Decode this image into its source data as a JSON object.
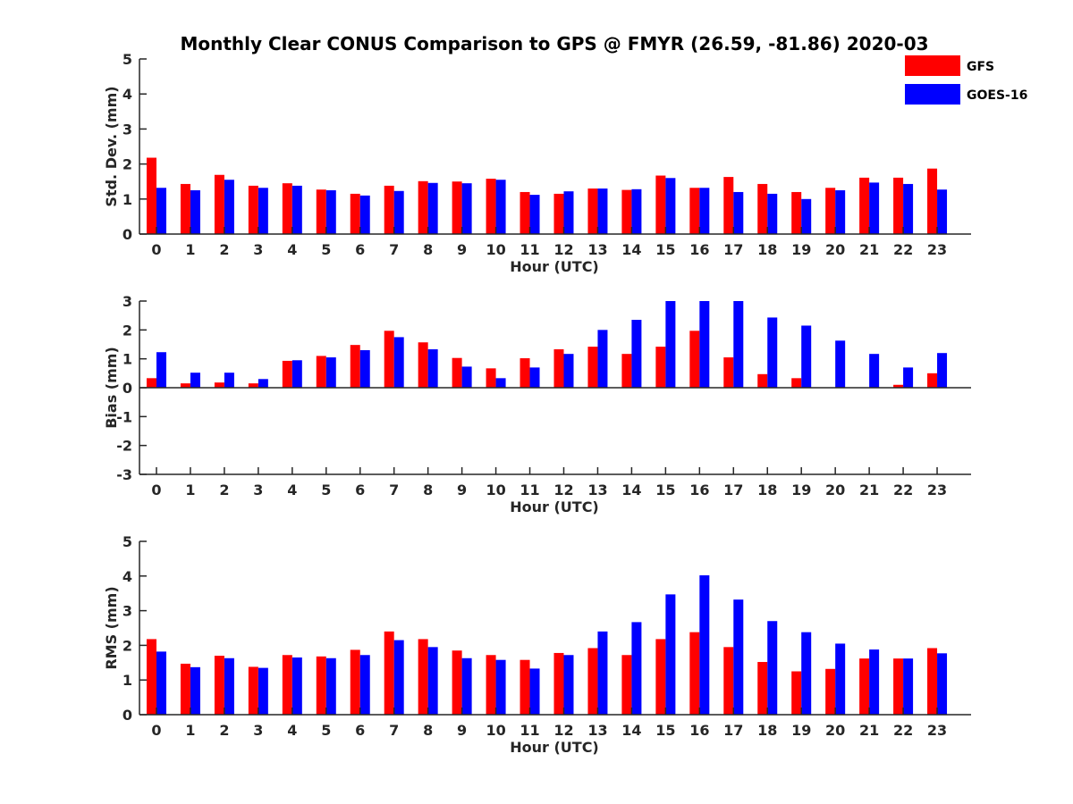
{
  "title": "Monthly Clear CONUS Comparison to GPS @ FMYR (26.59, -81.86) 2020-03",
  "legend": [
    {
      "name": "GFS",
      "color": "#ff0000"
    },
    {
      "name": "GOES-16",
      "color": "#0000ff"
    }
  ],
  "chart_data": [
    {
      "type": "bar",
      "xlabel": "Hour (UTC)",
      "ylabel": "Std. Dev. (mm)",
      "ylim": [
        0,
        5
      ],
      "yticks": [
        0,
        1,
        2,
        3,
        4,
        5
      ],
      "categories": [
        "0",
        "1",
        "2",
        "3",
        "4",
        "5",
        "6",
        "7",
        "8",
        "9",
        "10",
        "11",
        "12",
        "13",
        "14",
        "15",
        "16",
        "17",
        "18",
        "19",
        "20",
        "21",
        "22",
        "23"
      ],
      "series": [
        {
          "name": "GFS",
          "values": [
            2.18,
            1.43,
            1.69,
            1.38,
            1.45,
            1.27,
            1.15,
            1.38,
            1.51,
            1.5,
            1.58,
            1.2,
            1.15,
            1.3,
            1.26,
            1.67,
            1.32,
            1.63,
            1.43,
            1.2,
            1.32,
            1.61,
            1.61,
            1.87
          ]
        },
        {
          "name": "GOES-16",
          "values": [
            1.32,
            1.25,
            1.55,
            1.32,
            1.38,
            1.25,
            1.1,
            1.23,
            1.46,
            1.45,
            1.55,
            1.12,
            1.22,
            1.3,
            1.28,
            1.6,
            1.32,
            1.2,
            1.15,
            1.0,
            1.25,
            1.47,
            1.43,
            1.27
          ]
        }
      ]
    },
    {
      "type": "bar",
      "xlabel": "Hour (UTC)",
      "ylabel": "Bias (mm)",
      "ylim": [
        -3,
        3
      ],
      "yticks": [
        -3,
        -2,
        -1,
        0,
        1,
        2,
        3
      ],
      "categories": [
        "0",
        "1",
        "2",
        "3",
        "4",
        "5",
        "6",
        "7",
        "8",
        "9",
        "10",
        "11",
        "12",
        "13",
        "14",
        "15",
        "16",
        "17",
        "18",
        "19",
        "20",
        "21",
        "22",
        "23"
      ],
      "series": [
        {
          "name": "GFS",
          "values": [
            0.33,
            0.15,
            0.18,
            0.15,
            0.93,
            1.1,
            1.48,
            1.97,
            1.57,
            1.03,
            0.67,
            1.02,
            1.33,
            1.42,
            1.17,
            1.42,
            1.97,
            1.05,
            0.47,
            0.33,
            0.0,
            0.0,
            0.1,
            0.5
          ]
        },
        {
          "name": "GOES-16",
          "values": [
            1.23,
            0.52,
            0.52,
            0.3,
            0.95,
            1.05,
            1.3,
            1.75,
            1.33,
            0.73,
            0.33,
            0.7,
            1.17,
            2.0,
            2.35,
            3.0,
            3.0,
            3.0,
            2.43,
            2.15,
            1.63,
            1.17,
            0.7,
            1.2
          ]
        }
      ]
    },
    {
      "type": "bar",
      "xlabel": "Hour (UTC)",
      "ylabel": "RMS (mm)",
      "ylim": [
        0,
        5
      ],
      "yticks": [
        0,
        1,
        2,
        3,
        4,
        5
      ],
      "categories": [
        "0",
        "1",
        "2",
        "3",
        "4",
        "5",
        "6",
        "7",
        "8",
        "9",
        "10",
        "11",
        "12",
        "13",
        "14",
        "15",
        "16",
        "17",
        "18",
        "19",
        "20",
        "21",
        "22",
        "23"
      ],
      "series": [
        {
          "name": "GFS",
          "values": [
            2.18,
            1.47,
            1.7,
            1.38,
            1.72,
            1.68,
            1.87,
            2.4,
            2.18,
            1.85,
            1.72,
            1.58,
            1.78,
            1.92,
            1.72,
            2.18,
            2.38,
            1.95,
            1.52,
            1.25,
            1.32,
            1.62,
            1.62,
            1.92
          ]
        },
        {
          "name": "GOES-16",
          "values": [
            1.82,
            1.37,
            1.63,
            1.35,
            1.65,
            1.63,
            1.72,
            2.15,
            1.95,
            1.63,
            1.58,
            1.33,
            1.72,
            2.4,
            2.67,
            3.47,
            4.02,
            3.32,
            2.7,
            2.38,
            2.05,
            1.88,
            1.62,
            1.77
          ]
        }
      ]
    }
  ]
}
